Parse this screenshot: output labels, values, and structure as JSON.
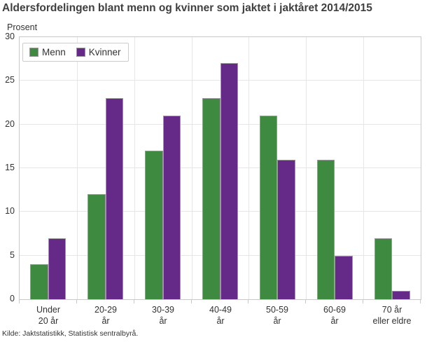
{
  "title": "Aldersfordelingen blant menn og kvinner som jaktet i jaktåret 2014/2015",
  "source": "Kilde: Jaktstatistikk, Statistisk sentralbyrå.",
  "colors": {
    "menn": "#3E8A41",
    "kvinner": "#652A87",
    "grid": "#e6e6e6",
    "axis": "#c9c9c9",
    "bar_border": "#999999",
    "text": "#333333",
    "title_text": "#3f3f3f"
  },
  "chart_data": {
    "type": "bar",
    "title": "Aldersfordelingen blant menn og kvinner som jaktet i jaktåret 2014/2015",
    "xlabel": "",
    "ylabel": "Prosent",
    "categories": [
      "Under\n20 år",
      "20-29\når",
      "30-39\når",
      "40-49\når",
      "50-59\når",
      "60-69\når",
      "70 år\neller eldre"
    ],
    "series": [
      {
        "name": "Menn",
        "color": "#3E8A41",
        "values": [
          4,
          12,
          17,
          23,
          21,
          16,
          7
        ]
      },
      {
        "name": "Kvinner",
        "color": "#652A87",
        "values": [
          7,
          23,
          21,
          27,
          16,
          5,
          1
        ]
      }
    ],
    "ylim": [
      0,
      30
    ],
    "y_ticks": [
      0,
      5,
      10,
      15,
      20,
      25,
      30
    ],
    "grid": true,
    "legend_position": "top-left"
  }
}
